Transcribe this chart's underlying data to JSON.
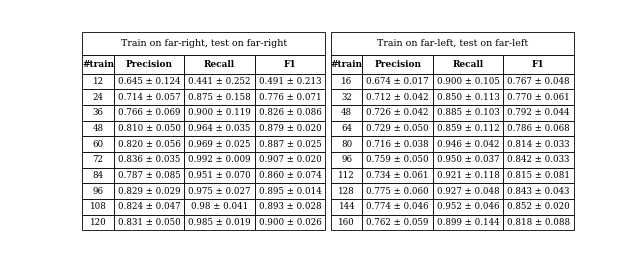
{
  "title_left": "Train on far-right, test on far-right",
  "title_right": "Train on far-left, test on far-left",
  "headers": [
    "#train",
    "Precision",
    "Recall",
    "F1",
    "#train",
    "Precision",
    "Recall",
    "F1"
  ],
  "rows_left": [
    [
      "12",
      "0.645 ± 0.124",
      "0.441 ± 0.252",
      "0.491 ± 0.213"
    ],
    [
      "24",
      "0.714 ± 0.057",
      "0.875 ± 0.158",
      "0.776 ± 0.071"
    ],
    [
      "36",
      "0.766 ± 0.069",
      "0.900 ± 0.119",
      "0.826 ± 0.086"
    ],
    [
      "48",
      "0.810 ± 0.050",
      "0.964 ± 0.035",
      "0.879 ± 0.020"
    ],
    [
      "60",
      "0.820 ± 0.056",
      "0.969 ± 0.025",
      "0.887 ± 0.025"
    ],
    [
      "72",
      "0.836 ± 0.035",
      "0.992 ± 0.009",
      "0.907 ± 0.020"
    ],
    [
      "84",
      "0.787 ± 0.085",
      "0.951 ± 0.070",
      "0.860 ± 0.074"
    ],
    [
      "96",
      "0.829 ± 0.029",
      "0.975 ± 0.027",
      "0.895 ± 0.014"
    ],
    [
      "108",
      "0.824 ± 0.047",
      "0.98 ± 0.041",
      "0.893 ± 0.028"
    ],
    [
      "120",
      "0.831 ± 0.050",
      "0.985 ± 0.019",
      "0.900 ± 0.026"
    ]
  ],
  "rows_right": [
    [
      "16",
      "0.674 ± 0.017",
      "0.900 ± 0.105",
      "0.767 ± 0.048"
    ],
    [
      "32",
      "0.712 ± 0.042",
      "0.850 ± 0.113",
      "0.770 ± 0.061"
    ],
    [
      "48",
      "0.726 ± 0.042",
      "0.885 ± 0.103",
      "0.792 ± 0.044"
    ],
    [
      "64",
      "0.729 ± 0.050",
      "0.859 ± 0.112",
      "0.786 ± 0.068"
    ],
    [
      "80",
      "0.716 ± 0.038",
      "0.946 ± 0.042",
      "0.814 ± 0.033"
    ],
    [
      "96",
      "0.759 ± 0.050",
      "0.950 ± 0.037",
      "0.842 ± 0.033"
    ],
    [
      "112",
      "0.734 ± 0.061",
      "0.921 ± 0.118",
      "0.815 ± 0.081"
    ],
    [
      "128",
      "0.775 ± 0.060",
      "0.927 ± 0.048",
      "0.843 ± 0.043"
    ],
    [
      "144",
      "0.774 ± 0.046",
      "0.952 ± 0.046",
      "0.852 ± 0.020"
    ],
    [
      "160",
      "0.762 ± 0.059",
      "0.899 ± 0.144",
      "0.818 ± 0.088"
    ]
  ],
  "title_bg": "#ffffff",
  "header_bg": "#ffffff",
  "row_bg": "#ffffff",
  "border_color": "#000000",
  "font_size": 6.2,
  "header_font_size": 6.5,
  "title_font_size": 6.8,
  "fig_width": 6.4,
  "fig_height": 2.6,
  "dpi": 100
}
